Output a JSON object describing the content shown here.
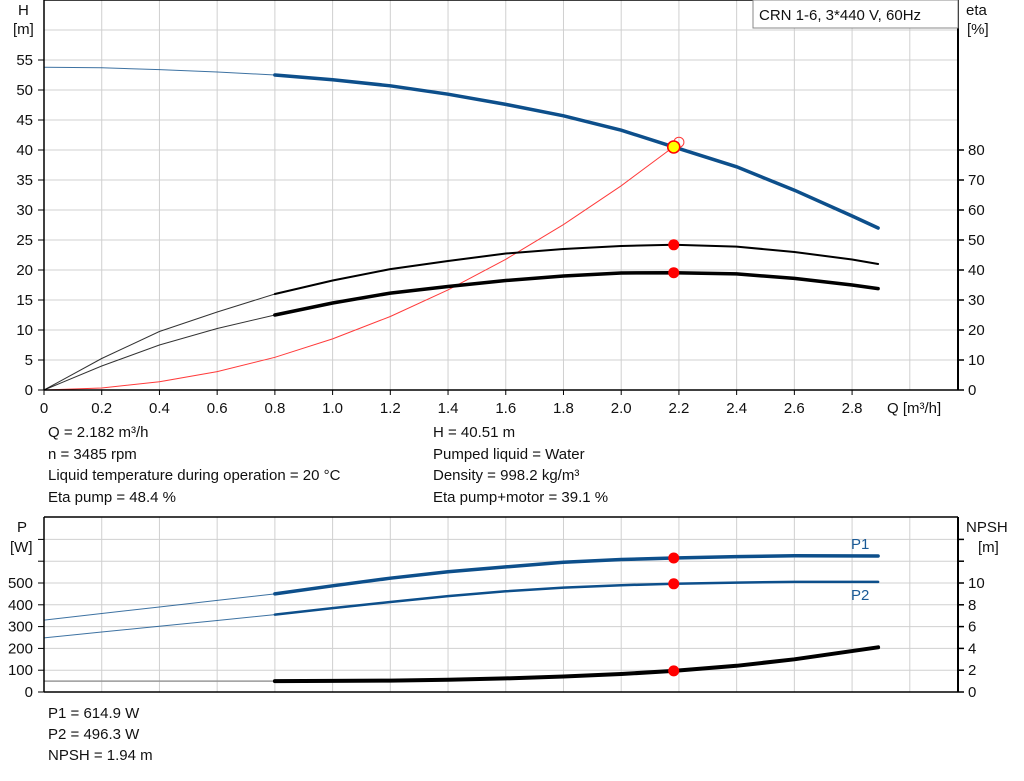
{
  "legend_box": "CRN 1-6, 3*440 V, 60Hz",
  "colors": {
    "head": "#0d4f8b",
    "power": "#0d4f8b",
    "efficiency": "#000000",
    "npsh": "#000000",
    "system": "#ff3b3b",
    "duty_point": "#ff0000",
    "duty_marker_fill": "#ffff00",
    "grid": "#d0d0d0"
  },
  "info_top": {
    "q": "Q = 2.182 m³/h",
    "n": "n = 3485 rpm",
    "temp": "Liquid temperature during operation = 20 °C",
    "eta_pump": "Eta pump = 48.4 %",
    "h": "H = 40.51 m",
    "liquid": "Pumped liquid = Water",
    "density": "Density = 998.2 kg/m³",
    "eta_total": "Eta pump+motor = 39.1 %"
  },
  "info_bottom": {
    "p1": "P1 = 614.9 W",
    "p2": "P2 = 496.3 W",
    "npsh": "NPSH = 1.94 m"
  },
  "chart_data": [
    {
      "type": "line",
      "xlabel": "Q [m³/h]",
      "ylabel": [
        "H",
        "[m]"
      ],
      "y2label": [
        "eta",
        "[%]"
      ],
      "xlim": [
        0,
        3.2
      ],
      "ylim": [
        0,
        65
      ],
      "y2lim": [
        0,
        130
      ],
      "xticks": [
        "0",
        "0.2",
        "0.4",
        "0.6",
        "0.8",
        "1.0",
        "1.2",
        "1.4",
        "1.6",
        "1.8",
        "2.0",
        "2.2",
        "2.4",
        "2.6",
        "2.8"
      ],
      "yticks": [
        "0",
        "5",
        "10",
        "15",
        "20",
        "25",
        "30",
        "35",
        "40",
        "45",
        "50",
        "55"
      ],
      "y2ticks": [
        "0",
        "10",
        "20",
        "30",
        "40",
        "50",
        "60",
        "70",
        "80"
      ],
      "grid": true,
      "series": [
        {
          "key": "head",
          "axis": "H",
          "x": [
            0,
            0.2,
            0.4,
            0.6,
            0.8,
            1.0,
            1.2,
            1.4,
            1.6,
            1.8,
            2.0,
            2.182,
            2.4,
            2.6,
            2.8,
            2.89
          ],
          "y": [
            53.8,
            53.7,
            53.4,
            53.0,
            52.5,
            51.7,
            50.7,
            49.3,
            47.6,
            45.7,
            43.3,
            40.51,
            37.2,
            33.3,
            29.0,
            27.0
          ]
        },
        {
          "key": "eta_pump",
          "axis": "eta",
          "x": [
            0,
            0.2,
            0.4,
            0.6,
            0.8,
            1.0,
            1.2,
            1.4,
            1.6,
            1.8,
            2.0,
            2.182,
            2.4,
            2.6,
            2.8,
            2.89
          ],
          "y": [
            0,
            10.5,
            19.5,
            26,
            32,
            36.5,
            40.3,
            43,
            45.5,
            47,
            48,
            48.4,
            47.8,
            46,
            43.5,
            42
          ]
        },
        {
          "key": "eta_total",
          "axis": "eta",
          "x": [
            0,
            0.2,
            0.4,
            0.6,
            0.8,
            1.0,
            1.2,
            1.4,
            1.6,
            1.8,
            2.0,
            2.182,
            2.4,
            2.6,
            2.8,
            2.89
          ],
          "y": [
            0,
            8,
            15,
            20.5,
            25,
            29,
            32.3,
            34.5,
            36.5,
            38,
            39,
            39.1,
            38.7,
            37.2,
            35,
            33.8
          ]
        },
        {
          "key": "system",
          "axis": "H",
          "x": [
            0,
            0.2,
            0.4,
            0.6,
            0.8,
            1.0,
            1.2,
            1.4,
            1.6,
            1.8,
            2.0,
            2.2
          ],
          "y": [
            0,
            0.34,
            1.36,
            3.06,
            5.45,
            8.51,
            12.25,
            16.68,
            21.79,
            27.57,
            34.04,
            41.19
          ]
        }
      ],
      "duty_points": [
        {
          "series": "head",
          "x": 2.182,
          "y": 40.51
        },
        {
          "series": "eta_pump",
          "x": 2.182,
          "y": 48.4
        },
        {
          "series": "eta_total",
          "x": 2.182,
          "y": 39.1
        }
      ]
    },
    {
      "type": "line",
      "ylabel": [
        "P",
        "[W]"
      ],
      "y2label": [
        "NPSH",
        "[m]"
      ],
      "xlim": [
        0,
        3.2
      ],
      "ylim": [
        0,
        800
      ],
      "y2lim": [
        0,
        16
      ],
      "yticks": [
        "0",
        "100",
        "200",
        "300",
        "400",
        "500"
      ],
      "y2ticks": [
        "0",
        "2",
        "4",
        "6",
        "8",
        "10"
      ],
      "grid": true,
      "series": [
        {
          "key": "p1",
          "name": "P1",
          "axis": "P",
          "x": [
            0,
            0.2,
            0.4,
            0.6,
            0.8,
            1.0,
            1.2,
            1.4,
            1.6,
            1.8,
            2.0,
            2.182,
            2.4,
            2.6,
            2.89
          ],
          "y": [
            330,
            360,
            390,
            420,
            450,
            487,
            522,
            552,
            574,
            595,
            608,
            614.9,
            621,
            625,
            624
          ]
        },
        {
          "key": "p2",
          "name": "P2",
          "axis": "P",
          "x": [
            0,
            0.2,
            0.4,
            0.6,
            0.8,
            1.0,
            1.2,
            1.4,
            1.6,
            1.8,
            2.0,
            2.182,
            2.4,
            2.6,
            2.89
          ],
          "y": [
            248,
            275,
            302,
            328,
            355,
            385,
            413,
            440,
            462,
            479,
            490,
            496.3,
            502,
            505,
            505
          ]
        },
        {
          "key": "npsh",
          "axis": "NPSH",
          "x": [
            0,
            0.2,
            0.4,
            0.6,
            0.8,
            1.0,
            1.2,
            1.4,
            1.6,
            1.8,
            2.0,
            2.182,
            2.4,
            2.6,
            2.89
          ],
          "y": [
            1.0,
            1.0,
            1.0,
            1.0,
            1.0,
            1.02,
            1.05,
            1.12,
            1.25,
            1.42,
            1.65,
            1.94,
            2.4,
            3.0,
            4.1
          ]
        }
      ],
      "duty_points": [
        {
          "series": "p1",
          "x": 2.182,
          "y": 614.9
        },
        {
          "series": "p2",
          "x": 2.182,
          "y": 496.3
        },
        {
          "series": "npsh",
          "x": 2.182,
          "y": 1.94
        }
      ]
    }
  ]
}
